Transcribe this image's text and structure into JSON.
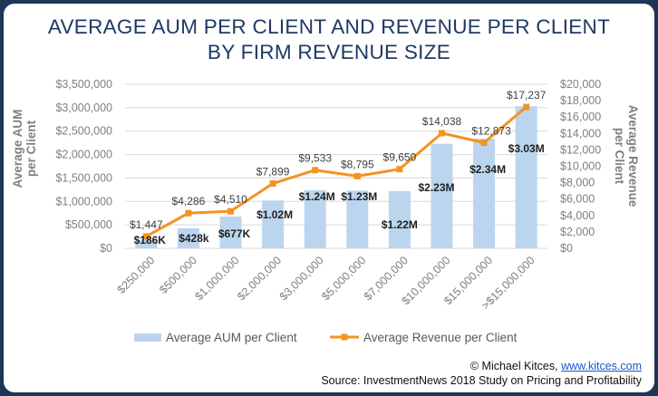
{
  "title_line1": "AVERAGE AUM PER CLIENT AND REVENUE PER CLIENT",
  "title_line2": "BY FIRM REVENUE SIZE",
  "credit_prefix": "© Michael Kitces,",
  "credit_link": "www.kitces.com",
  "source": "Source: InvestmentNews 2018 Study on Pricing and Profitability",
  "colors": {
    "bar": "#bcd5ee",
    "line": "#f39321",
    "title": "#1f3864",
    "axis_text": "#7f7f7f",
    "grid": "#d9d9d9"
  },
  "chart_data": {
    "type": "bar+line",
    "categories": [
      "$250,000",
      "$500,000",
      "$1,000,000",
      "$2,000,000",
      "$3,000,000",
      "$5,000,000",
      "$7,000,000",
      "$10,000,000",
      "$15,000,000",
      ">$15,000,000"
    ],
    "ylabel_left_line1": "Average AUM",
    "ylabel_left_line2": "per Client",
    "ylabel_right_line1": "Average Revenue",
    "ylabel_right_line2": "per Client",
    "ylim_left": [
      0,
      3500000
    ],
    "ylim_right": [
      0,
      20000
    ],
    "yticks_left": [
      "$0",
      "$500,000",
      "$1,000,000",
      "$1,500,000",
      "$2,000,000",
      "$2,500,000",
      "$3,000,000",
      "$3,500,000"
    ],
    "yticks_right": [
      "$0",
      "$2,000",
      "$4,000",
      "$6,000",
      "$8,000",
      "$10,000",
      "$12,000",
      "$14,000",
      "$16,000",
      "$18,000",
      "$20,000"
    ],
    "grid": true,
    "legend_position": "bottom",
    "series": [
      {
        "name": "Average AUM per Client",
        "type": "bar",
        "axis": "left",
        "values": [
          186000,
          428000,
          677000,
          1020000,
          1240000,
          1230000,
          1220000,
          2230000,
          2340000,
          3030000
        ],
        "labels": [
          "$186K",
          "$428k",
          "$677K",
          "$1.02M",
          "$1.24M",
          "$1.23M",
          "$1.22M",
          "$2.23M",
          "$2.34M",
          "$3.03M"
        ]
      },
      {
        "name": "Average Revenue per Client",
        "type": "line",
        "axis": "right",
        "values": [
          1447,
          4286,
          4510,
          7899,
          9533,
          8795,
          9650,
          14038,
          12873,
          17237
        ],
        "labels": [
          "$1,447",
          "$4,286",
          "$4,510",
          "$7,899",
          "$9,533",
          "$8,795",
          "$9,650",
          "$14,038",
          "$12,873",
          "$17,237"
        ]
      }
    ]
  }
}
